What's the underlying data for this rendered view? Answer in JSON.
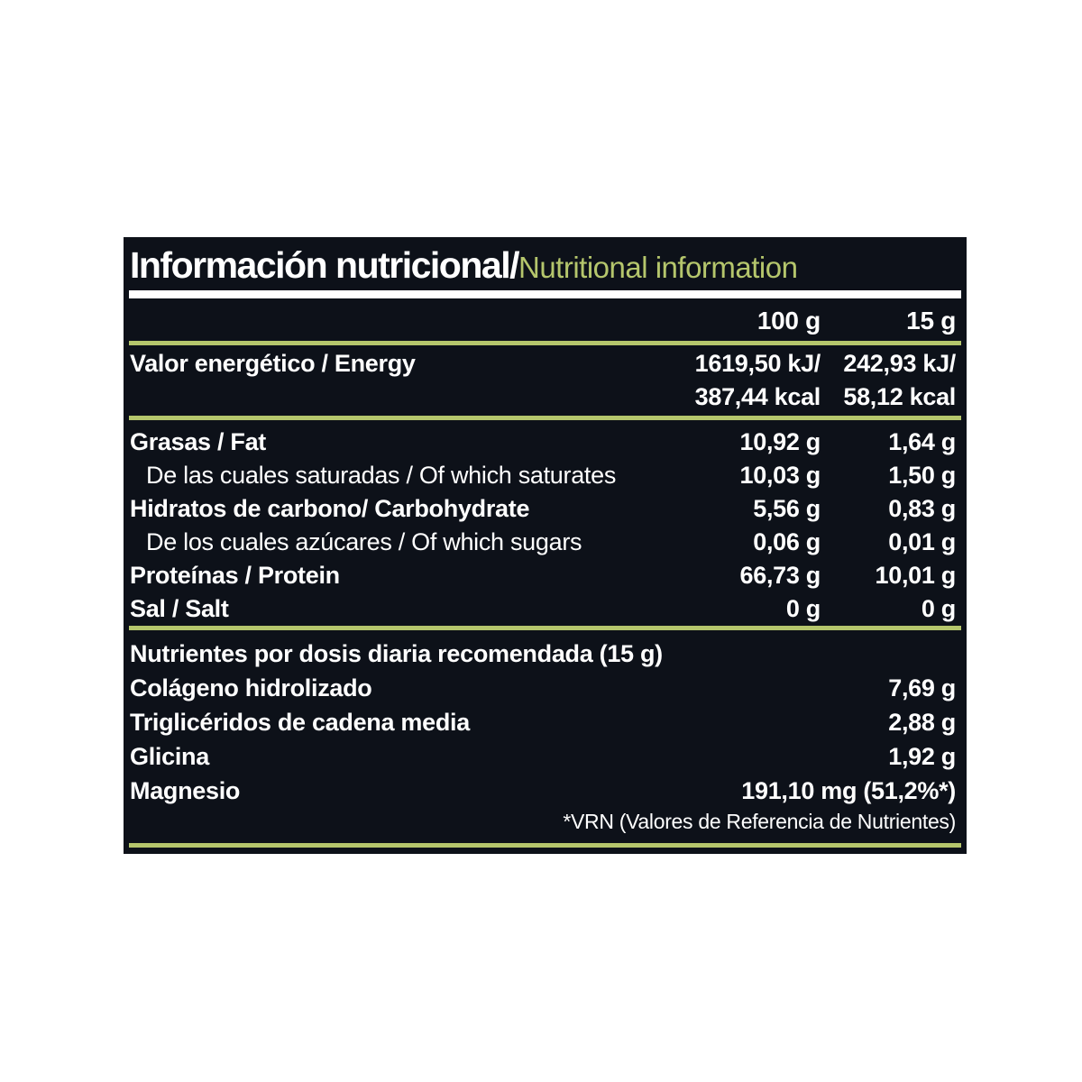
{
  "colors": {
    "page_background": "#ffffff",
    "panel_background": "#0d1119",
    "accent_green": "#b5c66c",
    "text": "#ffffff"
  },
  "header": {
    "title_es": "Información nutricional/",
    "title_en": "Nutritional information"
  },
  "columns": {
    "per_100g": "100 g",
    "per_15g": "15 g"
  },
  "energy": {
    "label": "Valor energético / Energy",
    "per100_kj": "1619,50 kJ/",
    "per100_kcal": "387,44 kcal",
    "per15_kj": "242,93 kJ/",
    "per15_kcal": "58,12 kcal"
  },
  "nutrients": [
    {
      "label": "Grasas / Fat",
      "per100": "10,92 g",
      "per15": "1,64 g"
    },
    {
      "label": "De las cuales saturadas / Of which saturates",
      "per100": "10,03 g",
      "per15": "1,50 g"
    },
    {
      "label": "Hidratos de carbono/ Carbohydrate",
      "per100": "5,56 g",
      "per15": "0,83 g"
    },
    {
      "label": "De los cuales azúcares / Of which sugars",
      "per100": "0,06 g",
      "per15": "0,01 g"
    },
    {
      "label": "Proteínas / Protein",
      "per100": "66,73 g",
      "per15": "10,01 g"
    },
    {
      "label": "Sal / Salt",
      "per100": "0 g",
      "per15": "0 g"
    }
  ],
  "daily_dose": {
    "header": "Nutrientes por dosis diaria recomendada (15 g)",
    "rows": [
      {
        "label": "Colágeno hidrolizado",
        "value": "7,69 g"
      },
      {
        "label": "Triglicéridos de cadena media",
        "value": "2,88 g"
      },
      {
        "label": "Glicina",
        "value": "1,92 g"
      },
      {
        "label": "Magnesio",
        "value": "191,10 mg (51,2%*)"
      }
    ],
    "footnote": "*VRN (Valores de Referencia de Nutrientes)"
  }
}
